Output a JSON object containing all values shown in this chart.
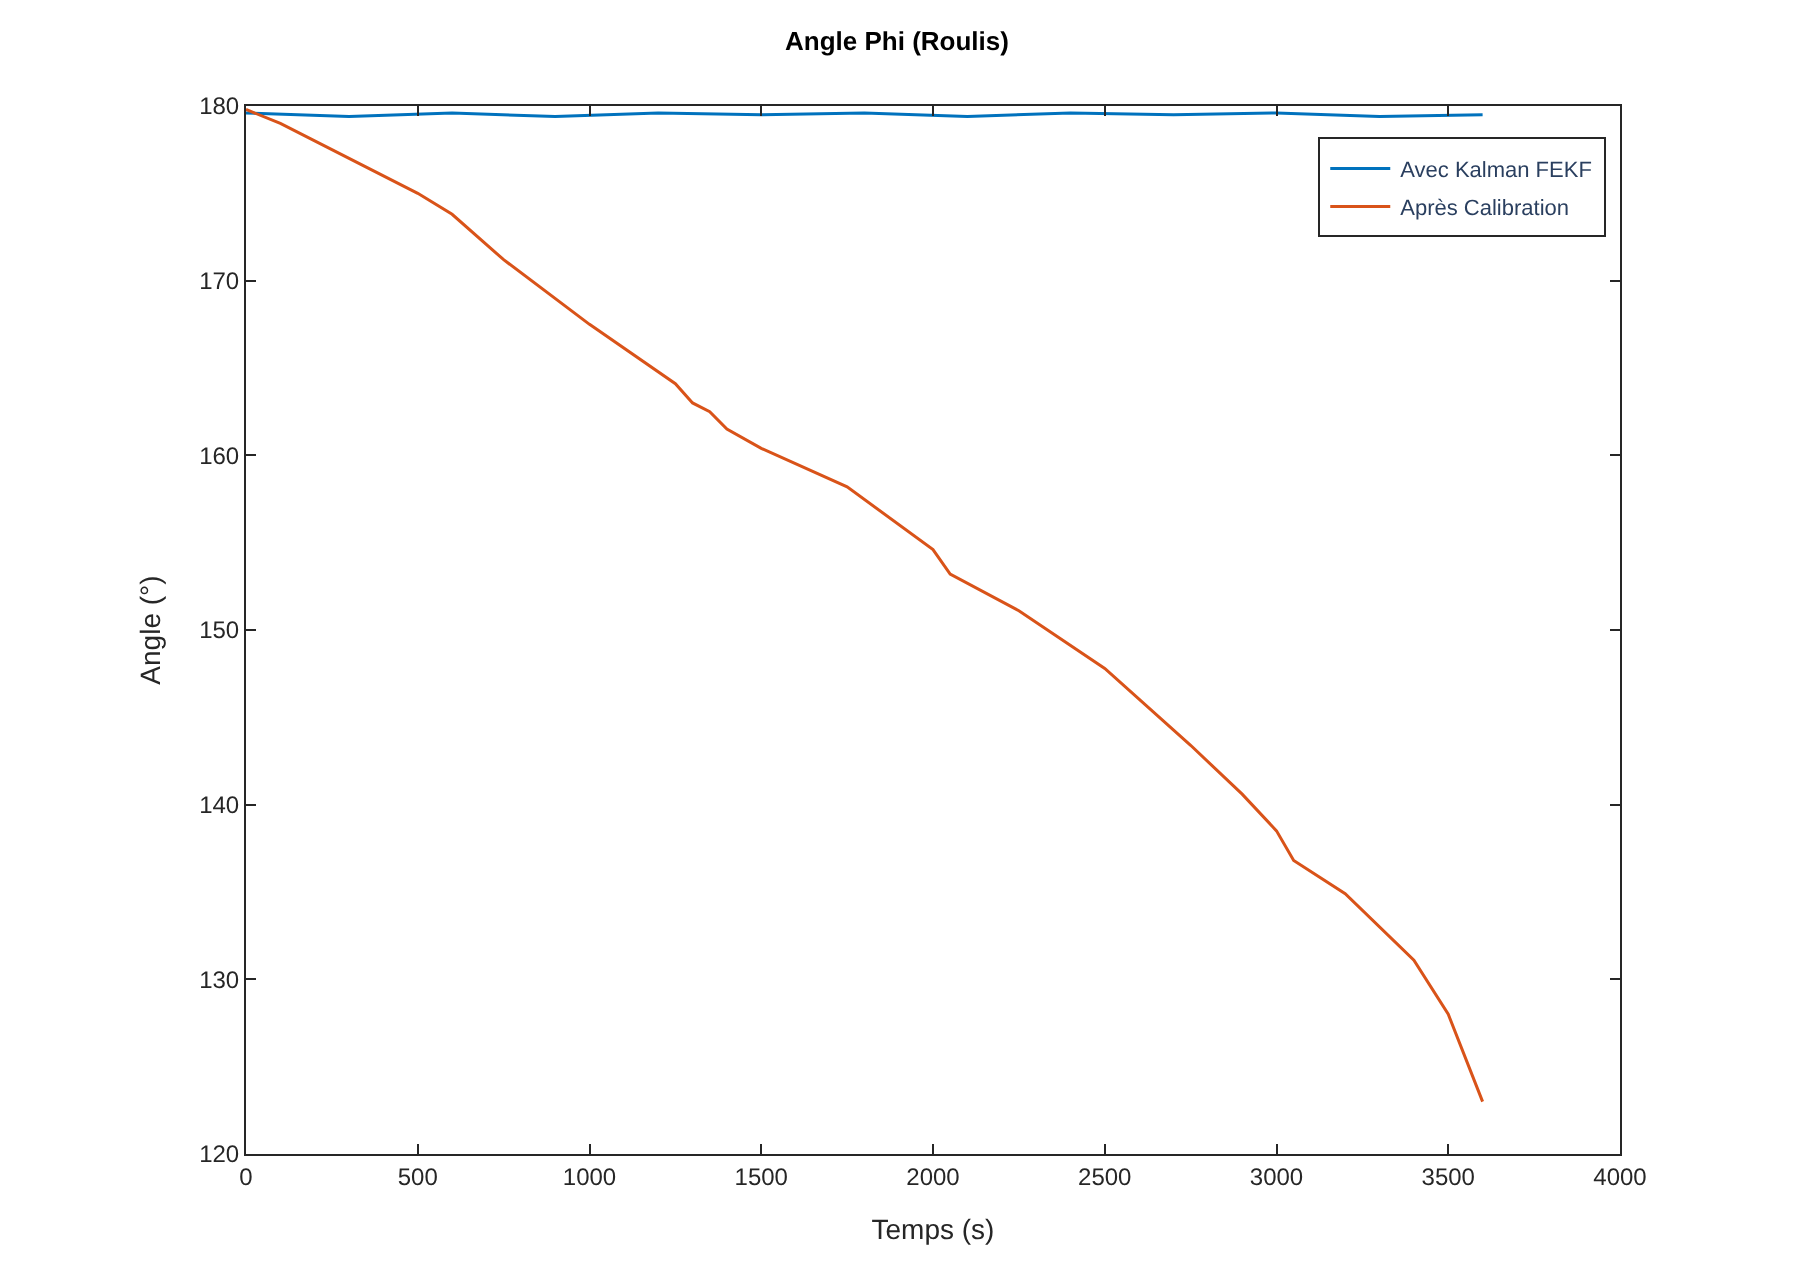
{
  "chart_data": {
    "type": "line",
    "title": "Angle Phi (Roulis)",
    "xlabel": "Temps (s)",
    "ylabel": "Angle (°)",
    "xlim": [
      0,
      4000
    ],
    "ylim": [
      120,
      180
    ],
    "xticks": [
      0,
      500,
      1000,
      1500,
      2000,
      2500,
      3000,
      3500,
      4000
    ],
    "yticks": [
      120,
      130,
      140,
      150,
      160,
      170,
      180
    ],
    "legend": "top right",
    "marker": "none",
    "line_style": "solid",
    "series": [
      {
        "name": "Avec Kalman FEKF",
        "color": "#0072bd",
        "x": [
          0,
          300,
          600,
          900,
          1200,
          1500,
          1800,
          2100,
          2400,
          2700,
          3000,
          3300,
          3600
        ],
        "values": [
          179.6,
          179.4,
          179.6,
          179.4,
          179.6,
          179.5,
          179.6,
          179.4,
          179.6,
          179.5,
          179.6,
          179.4,
          179.5
        ]
      },
      {
        "name": "Après Calibration",
        "color": "#d95319",
        "x": [
          0,
          100,
          250,
          500,
          600,
          750,
          1000,
          1250,
          1300,
          1350,
          1400,
          1500,
          1750,
          2000,
          2050,
          2250,
          2500,
          2750,
          2900,
          3000,
          3050,
          3200,
          3400,
          3500,
          3600
        ],
        "values": [
          179.8,
          179,
          177.5,
          175,
          173.8,
          171.2,
          167.5,
          164.1,
          163,
          162.5,
          161.5,
          160.4,
          158.2,
          154.6,
          153.2,
          151.1,
          147.8,
          143.4,
          140.6,
          138.5,
          136.8,
          134.9,
          131.1,
          128,
          123
        ]
      }
    ]
  }
}
